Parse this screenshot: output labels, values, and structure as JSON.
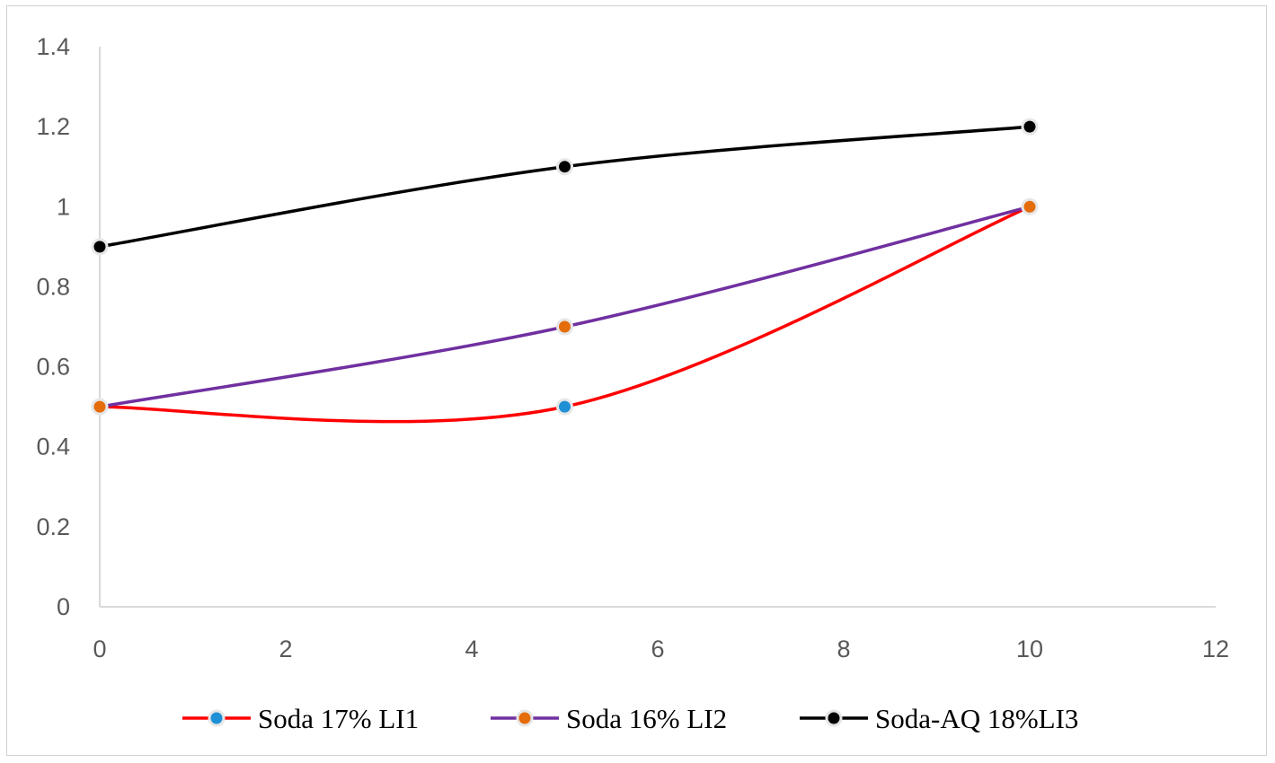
{
  "chart_data": {
    "type": "line",
    "title": "",
    "xlabel": "",
    "ylabel": "",
    "xlim": [
      0,
      12
    ],
    "ylim": [
      0,
      1.4
    ],
    "x_ticks": [
      0,
      2,
      4,
      6,
      8,
      10,
      12
    ],
    "x_tick_labels": [
      "0",
      "2",
      "4",
      "6",
      "8",
      "10",
      "12"
    ],
    "y_ticks": [
      0,
      0.2,
      0.4,
      0.6,
      0.8,
      1.0,
      1.2,
      1.4
    ],
    "y_tick_labels": [
      "0",
      "0.2",
      "0.4",
      "0.6",
      "0.8",
      "1",
      "1.2",
      "1.4"
    ],
    "grid": false,
    "smoothed": true,
    "legend_position": "bottom",
    "series": [
      {
        "name": "Soda 17% LI1",
        "x": [
          0,
          5,
          10
        ],
        "y": [
          0.5,
          0.5,
          1.0
        ],
        "line_color": "#ff0000",
        "marker_fill": "#1f8fd6"
      },
      {
        "name": "Soda 16% LI2",
        "x": [
          0,
          5,
          10
        ],
        "y": [
          0.5,
          0.7,
          1.0
        ],
        "line_color": "#7030a0",
        "marker_fill": "#e46c0a"
      },
      {
        "name": "Soda-AQ 18%LI3",
        "x": [
          0,
          5,
          10
        ],
        "y": [
          0.9,
          1.1,
          1.2
        ],
        "line_color": "#000000",
        "marker_fill": "#000000"
      }
    ]
  }
}
